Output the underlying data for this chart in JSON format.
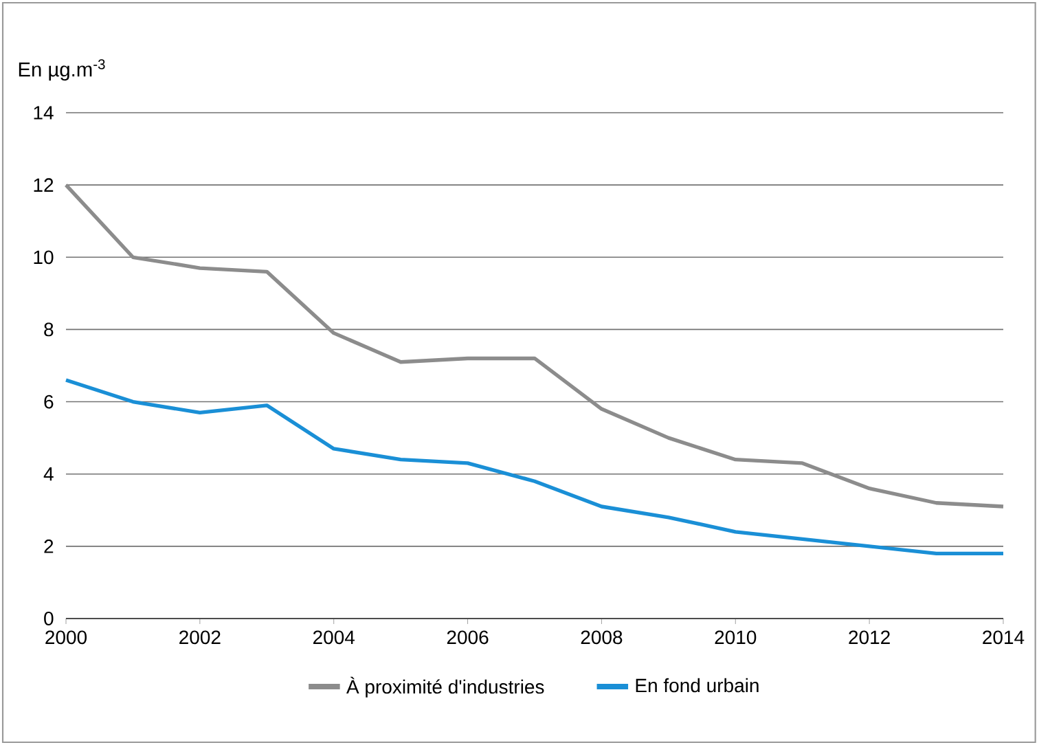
{
  "chart_data": {
    "type": "line",
    "ylabel": "En µg.m$^{-3}$",
    "x": [
      2000,
      2001,
      2002,
      2003,
      2004,
      2005,
      2006,
      2007,
      2008,
      2009,
      2010,
      2011,
      2012,
      2013,
      2014
    ],
    "series": [
      {
        "name": "À proximité d'industries",
        "color": "#8c8c8c",
        "values": [
          12,
          10,
          9.7,
          9.6,
          7.9,
          7.1,
          7.2,
          7.2,
          5.8,
          5.0,
          4.4,
          4.3,
          3.6,
          3.2,
          3.1
        ]
      },
      {
        "name": "En fond urbain",
        "color": "#1a8fd6",
        "values": [
          6.6,
          6.0,
          5.7,
          5.9,
          4.7,
          4.4,
          4.3,
          3.8,
          3.1,
          2.8,
          2.4,
          2.2,
          2.0,
          1.8,
          1.8
        ]
      }
    ],
    "xlim": [
      2000,
      2014
    ],
    "xticks": [
      2000,
      2002,
      2004,
      2006,
      2008,
      2010,
      2012,
      2014
    ],
    "ylim": [
      0,
      14
    ],
    "yticks": [
      0,
      2,
      4,
      6,
      8,
      10,
      12,
      14
    ],
    "grid": "y",
    "legend": "bottom"
  }
}
